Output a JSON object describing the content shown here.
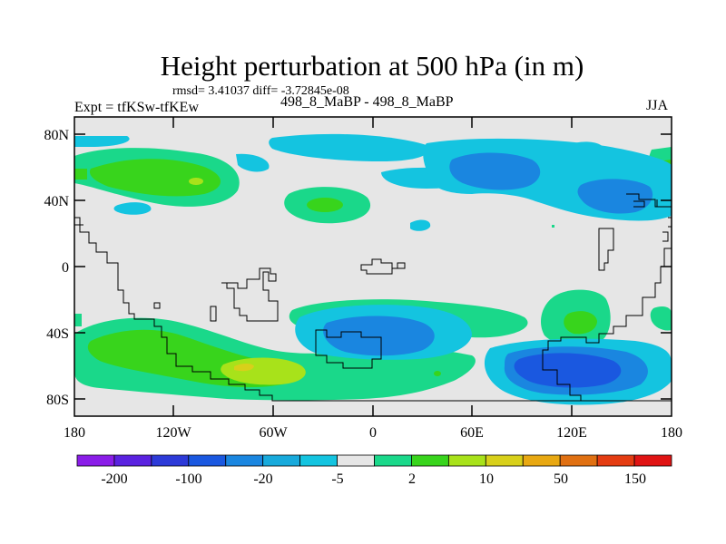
{
  "title": "Height perturbation at 500 hPa (in m)",
  "stats_line": "rmsd= 3.41037 diff= -3.72845e-08",
  "left_label": "Expt = tfKSw-tfKEw",
  "center_label": "498_8_MaBP - 498_8_MaBP",
  "right_label": "JJA",
  "axes": {
    "y_ticks": [
      "80N",
      "40N",
      "0",
      "40S",
      "80S"
    ],
    "x_ticks": [
      "180",
      "120W",
      "60W",
      "0",
      "60E",
      "120E",
      "180"
    ]
  },
  "colorbar": {
    "colors": [
      "#8a1de8",
      "#5a22e0",
      "#2d3ad8",
      "#1a58e0",
      "#1a86e0",
      "#18aadc",
      "#14c4e0",
      "#e6e6e6",
      "#1ad88a",
      "#38d41c",
      "#a8e21a",
      "#d8d01a",
      "#e8a812",
      "#e07012",
      "#e43c12",
      "#e01414"
    ],
    "labels": [
      "-200",
      "-100",
      "-20",
      "-5",
      "2",
      "10",
      "50",
      "150"
    ]
  },
  "colors": {
    "background": "#e6e6e6",
    "pos_low": "#1ad88a",
    "pos_mid": "#38d41c",
    "pos_high": "#a8e21a",
    "pos_peak": "#d8d01a",
    "neg_low": "#14c4e0",
    "neg_mid": "#1a86e0",
    "neg_high": "#1a58e0"
  }
}
